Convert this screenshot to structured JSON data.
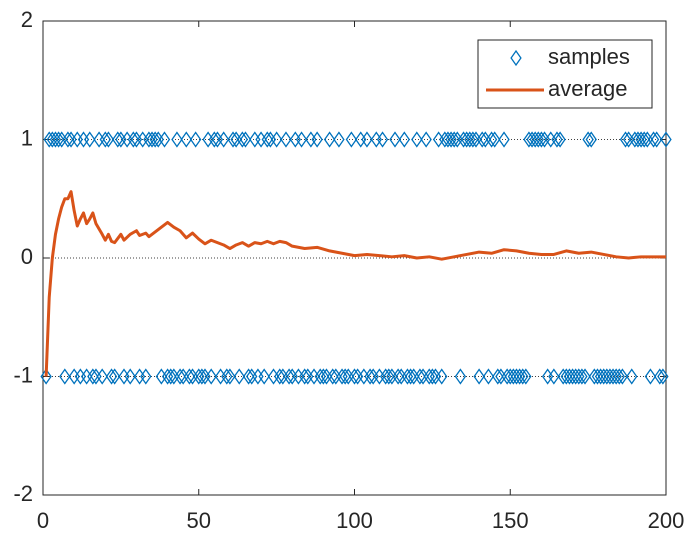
{
  "chart_data": {
    "type": "line",
    "xlim": [
      0,
      200
    ],
    "xticks": [
      0,
      50,
      100,
      150,
      200
    ],
    "ylim": [
      -2,
      2
    ],
    "yticks": [
      -2,
      -1,
      0,
      1,
      2
    ],
    "reference_lines": [
      -1,
      0,
      1
    ],
    "legend": "top-right",
    "series": [
      {
        "name": "samples",
        "color": "#0072BD",
        "marker": "diamond",
        "x": [
          1,
          2,
          3,
          4,
          5,
          6,
          7,
          8,
          9,
          10,
          11,
          12,
          13,
          14,
          15,
          16,
          17,
          18,
          19,
          20,
          21,
          22,
          23,
          24,
          25,
          26,
          27,
          28,
          29,
          30,
          31,
          32,
          33,
          34,
          35,
          36,
          37,
          38,
          39,
          40,
          41,
          42,
          43,
          44,
          45,
          46,
          47,
          48,
          49,
          50,
          51,
          52,
          53,
          54,
          55,
          56,
          57,
          58,
          59,
          60,
          61,
          62,
          63,
          64,
          65,
          66,
          67,
          68,
          69,
          70,
          71,
          72,
          73,
          74,
          75,
          76,
          77,
          78,
          79,
          80,
          81,
          82,
          83,
          84,
          85,
          86,
          87,
          88,
          89,
          90,
          91,
          92,
          93,
          94,
          95,
          96,
          97,
          98,
          99,
          100,
          101,
          102,
          103,
          104,
          105,
          106,
          107,
          108,
          109,
          110,
          111,
          112,
          113,
          114,
          115,
          116,
          117,
          118,
          119,
          120,
          121,
          122,
          123,
          124,
          125,
          126,
          127,
          128,
          129,
          130,
          131,
          132,
          133,
          134,
          135,
          136,
          137,
          138,
          139,
          140,
          141,
          142,
          143,
          144,
          145,
          146,
          147,
          148,
          149,
          150,
          151,
          152,
          153,
          154,
          155,
          156,
          157,
          158,
          159,
          160,
          161,
          162,
          163,
          164,
          165,
          166,
          167,
          168,
          169,
          170,
          171,
          172,
          173,
          174,
          175,
          176,
          177,
          178,
          179,
          180,
          181,
          182,
          183,
          184,
          185,
          186,
          187,
          188,
          189,
          190,
          191,
          192,
          193,
          194,
          195,
          196,
          197,
          198,
          199,
          200
        ],
        "values": [
          -1,
          1,
          1,
          1,
          1,
          1,
          -1,
          1,
          1,
          -1,
          1,
          -1,
          1,
          -1,
          1,
          -1,
          -1,
          1,
          -1,
          1,
          1,
          -1,
          -1,
          1,
          1,
          -1,
          1,
          -1,
          1,
          1,
          -1,
          1,
          -1,
          1,
          1,
          1,
          1,
          -1,
          1,
          -1,
          -1,
          -1,
          1,
          -1,
          -1,
          1,
          -1,
          -1,
          1,
          -1,
          -1,
          -1,
          1,
          -1,
          1,
          1,
          -1,
          1,
          -1,
          -1,
          1,
          1,
          -1,
          1,
          1,
          -1,
          -1,
          1,
          -1,
          1,
          -1,
          1,
          1,
          -1,
          1,
          -1,
          -1,
          1,
          -1,
          -1,
          1,
          -1,
          1,
          -1,
          -1,
          1,
          -1,
          1,
          -1,
          -1,
          -1,
          1,
          -1,
          -1,
          1,
          -1,
          -1,
          -1,
          1,
          -1,
          -1,
          1,
          -1,
          1,
          -1,
          -1,
          1,
          -1,
          1,
          -1,
          -1,
          -1,
          1,
          -1,
          -1,
          1,
          -1,
          -1,
          -1,
          1,
          -1,
          -1,
          1,
          -1,
          -1,
          -1,
          1,
          -1,
          1,
          1,
          1,
          1,
          1,
          -1,
          1,
          1,
          1,
          1,
          1,
          -1,
          1,
          1,
          -1,
          1,
          1,
          -1,
          -1,
          1,
          -1,
          -1,
          -1,
          -1,
          -1,
          -1,
          -1,
          1,
          1,
          1,
          1,
          1,
          1,
          -1,
          1,
          -1,
          1,
          1,
          -1,
          -1,
          -1,
          -1,
          -1,
          -1,
          -1,
          -1,
          1,
          1,
          -1,
          -1,
          -1,
          -1,
          -1,
          -1,
          -1,
          -1,
          -1,
          -1,
          1,
          1,
          -1,
          1,
          1,
          1,
          1,
          1,
          -1,
          1,
          1,
          -1,
          -1,
          1
        ]
      },
      {
        "name": "average",
        "color": "#D95319",
        "marker": "none",
        "x": [
          1,
          2,
          3,
          4,
          5,
          6,
          7,
          8,
          9,
          10,
          11,
          12,
          13,
          14,
          15,
          16,
          17,
          19,
          20,
          21,
          22,
          23,
          25,
          26,
          28,
          30,
          31,
          33,
          34,
          36,
          38,
          40,
          42,
          44,
          46,
          48,
          50,
          52,
          54,
          56,
          58,
          60,
          62,
          64,
          66,
          68,
          70,
          72,
          74,
          76,
          78,
          80,
          84,
          88,
          92,
          96,
          100,
          104,
          108,
          112,
          116,
          120,
          124,
          128,
          132,
          136,
          140,
          144,
          148,
          152,
          156,
          160,
          164,
          168,
          172,
          176,
          180,
          184,
          188,
          192,
          196,
          200
        ],
        "values": [
          -1,
          -0.33,
          0,
          0.2,
          0.33,
          0.43,
          0.5,
          0.5,
          0.56,
          0.4,
          0.27,
          0.33,
          0.38,
          0.29,
          0.33,
          0.38,
          0.29,
          0.2,
          0.15,
          0.2,
          0.14,
          0.13,
          0.2,
          0.15,
          0.2,
          0.23,
          0.19,
          0.21,
          0.18,
          0.22,
          0.26,
          0.3,
          0.26,
          0.23,
          0.17,
          0.21,
          0.16,
          0.12,
          0.15,
          0.13,
          0.11,
          0.08,
          0.11,
          0.13,
          0.1,
          0.13,
          0.12,
          0.14,
          0.12,
          0.14,
          0.13,
          0.1,
          0.08,
          0.09,
          0.06,
          0.04,
          0.02,
          0.03,
          0.02,
          0.01,
          0.02,
          0,
          0.01,
          -0.01,
          0.01,
          0.03,
          0.05,
          0.04,
          0.07,
          0.06,
          0.04,
          0.03,
          0.03,
          0.06,
          0.04,
          0.05,
          0.03,
          0.01,
          0,
          0.01,
          0.01,
          0.01
        ]
      }
    ]
  }
}
